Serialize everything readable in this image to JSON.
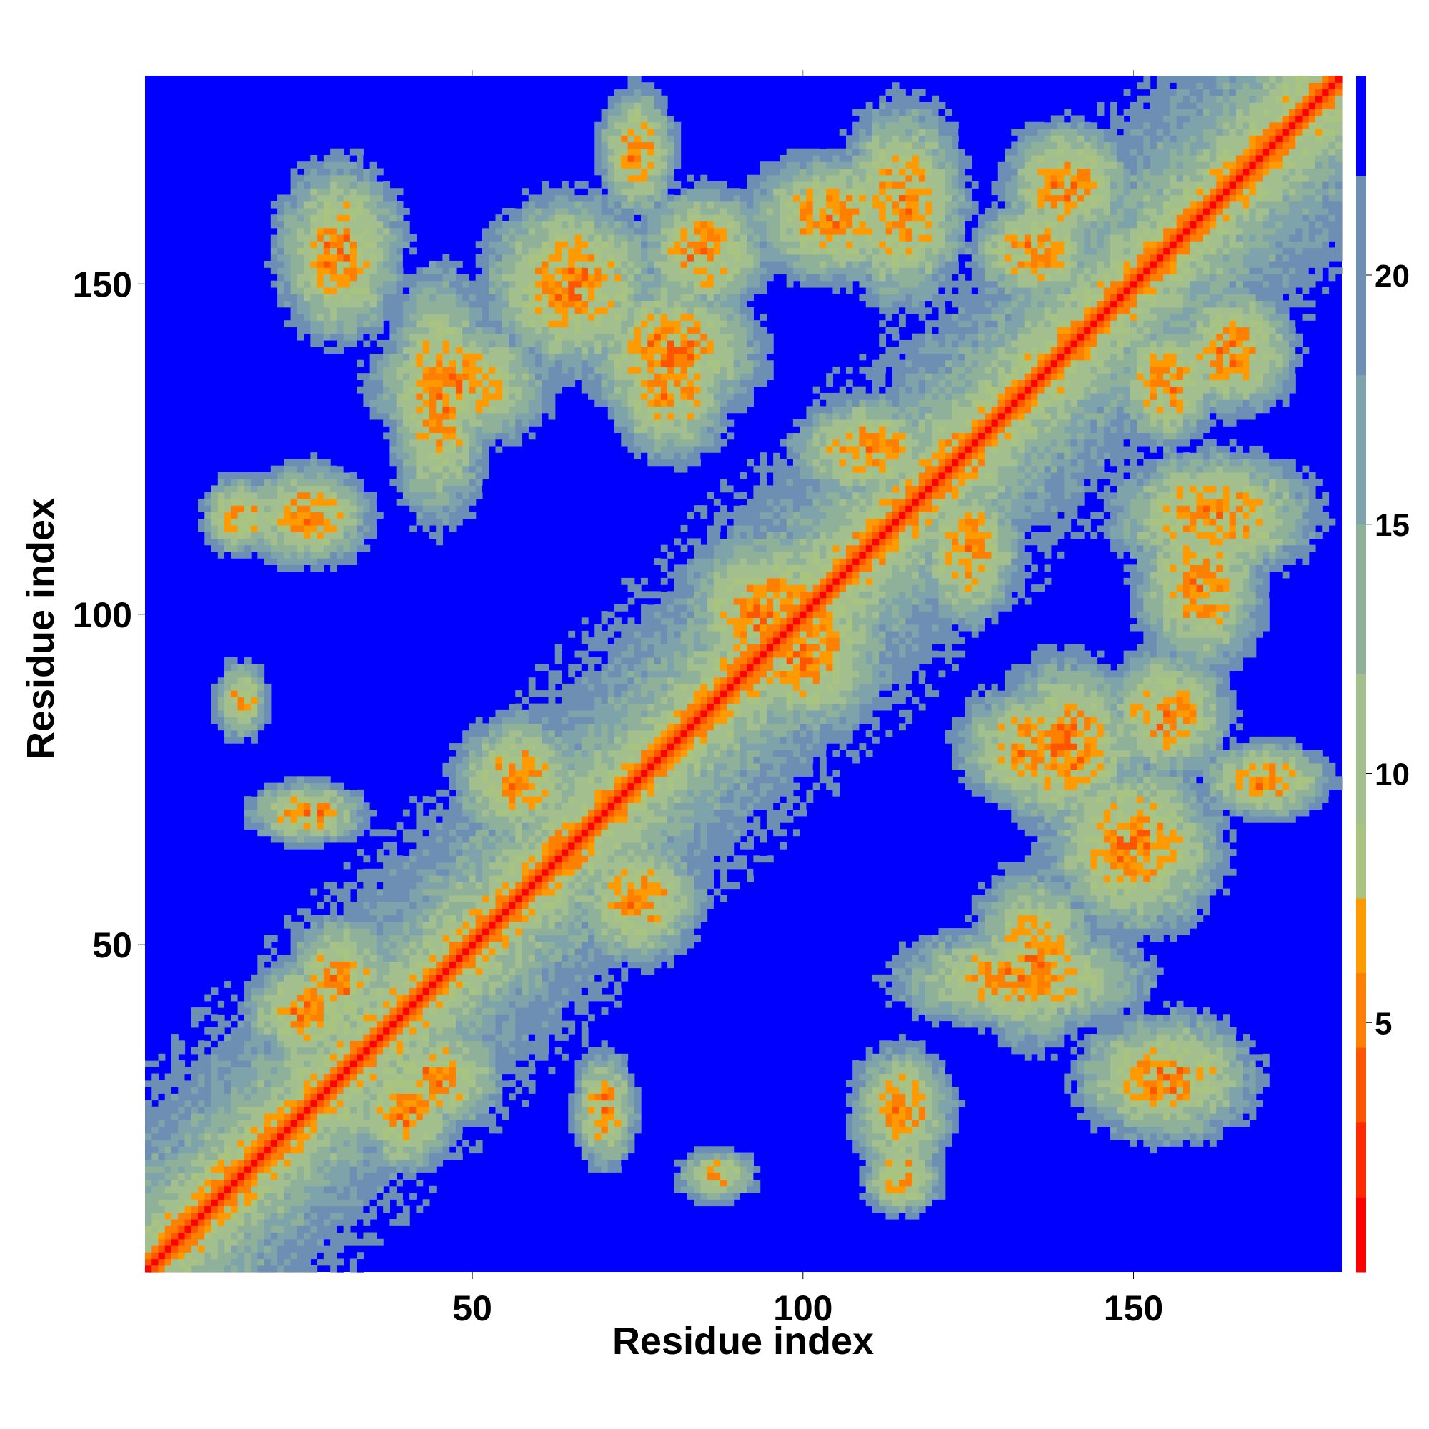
{
  "chart_data": {
    "type": "heatmap",
    "title": "",
    "xlabel": "Residue index",
    "ylabel": "Residue index",
    "xlim": [
      1,
      181
    ],
    "ylim": [
      1,
      181
    ],
    "x_ticks": [
      50,
      100,
      150
    ],
    "y_ticks": [
      50,
      100,
      150
    ],
    "colorbar": {
      "range": [
        0,
        24
      ],
      "ticks": [
        5,
        10,
        15,
        20
      ],
      "levels": [
        {
          "upper": 1.5,
          "color": "#ff0000"
        },
        {
          "upper": 3.0,
          "color": "#ff2a00"
        },
        {
          "upper": 4.5,
          "color": "#ff5500"
        },
        {
          "upper": 6.0,
          "color": "#ff8000"
        },
        {
          "upper": 7.5,
          "color": "#ff9a00"
        },
        {
          "upper": 9.0,
          "color": "#a9c481"
        },
        {
          "upper": 12.0,
          "color": "#a3bf8e"
        },
        {
          "upper": 15.0,
          "color": "#8fb19a"
        },
        {
          "upper": 18.0,
          "color": "#7ea3aa"
        },
        {
          "upper": 22.0,
          "color": "#6d8fb3"
        },
        {
          "upper": 24.0,
          "color": "#0000ff"
        }
      ]
    },
    "description_of_cells": "Residue-residue distance map (symmetric about the diagonal); diagonal ~0 (red), contacts within ~8 (orange), 9-22 (green-blue), beyond cutoff shown in blue",
    "contact_blobs": [
      {
        "x": 70,
        "y": 25,
        "sx": 5,
        "sy": 9
      },
      {
        "x": 115,
        "y": 25,
        "sx": 8,
        "sy": 10
      },
      {
        "x": 135,
        "y": 48,
        "sx": 10,
        "sy": 14
      },
      {
        "x": 150,
        "y": 65,
        "sx": 14,
        "sy": 14
      },
      {
        "x": 140,
        "y": 80,
        "sx": 12,
        "sy": 14
      },
      {
        "x": 155,
        "y": 85,
        "sx": 10,
        "sy": 10
      },
      {
        "x": 160,
        "y": 105,
        "sx": 10,
        "sy": 14
      },
      {
        "x": 100,
        "y": 95,
        "sx": 14,
        "sy": 14
      },
      {
        "x": 57,
        "y": 75,
        "sx": 10,
        "sy": 10
      },
      {
        "x": 45,
        "y": 30,
        "sx": 10,
        "sy": 8
      },
      {
        "x": 25,
        "y": 40,
        "sx": 8,
        "sy": 10
      },
      {
        "x": 15,
        "y": 87,
        "sx": 6,
        "sy": 4
      },
      {
        "x": 15,
        "y": 115,
        "sx": 6,
        "sy": 6
      },
      {
        "x": 45,
        "y": 133,
        "sx": 20,
        "sy": 8
      },
      {
        "x": 80,
        "y": 135,
        "sx": 12,
        "sy": 10
      },
      {
        "x": 30,
        "y": 155,
        "sx": 14,
        "sy": 10
      },
      {
        "x": 75,
        "y": 170,
        "sx": 10,
        "sy": 6
      },
      {
        "x": 115,
        "y": 162,
        "sx": 16,
        "sy": 10
      },
      {
        "x": 135,
        "y": 155,
        "sx": 8,
        "sy": 10
      },
      {
        "x": 165,
        "y": 140,
        "sx": 10,
        "sy": 10
      },
      {
        "x": 110,
        "y": 125,
        "sx": 8,
        "sy": 12
      }
    ]
  }
}
